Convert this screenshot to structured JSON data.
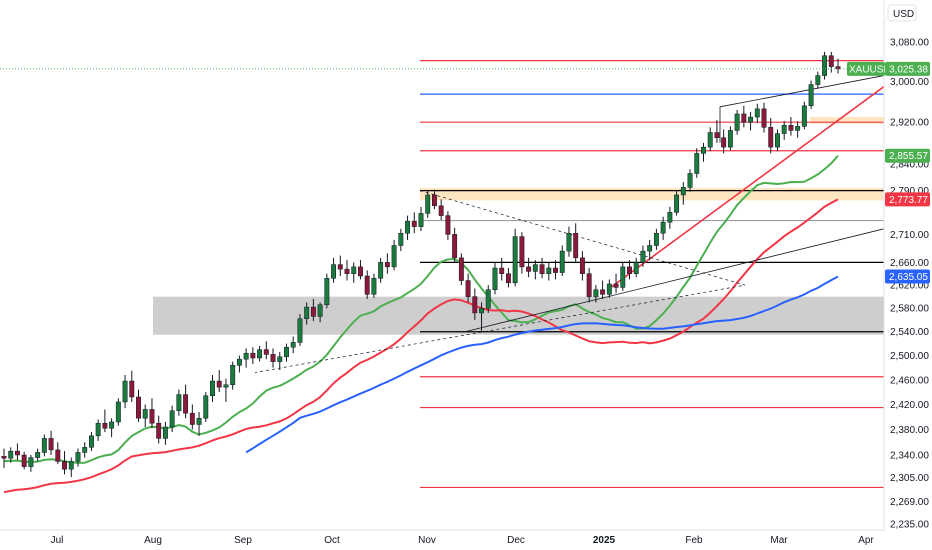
{
  "chart_data": {
    "type": "candlestick",
    "symbol": "XAUUSD",
    "currency": "USD",
    "last_price": 3025.38,
    "ylim": [
      2225,
      3095
    ],
    "y_scale": "log",
    "x_labels": [
      {
        "label": "Jul",
        "bold": false
      },
      {
        "label": "Aug",
        "bold": false
      },
      {
        "label": "Sep",
        "bold": false
      },
      {
        "label": "Oct",
        "bold": false
      },
      {
        "label": "Nov",
        "bold": false
      },
      {
        "label": "Dec",
        "bold": false
      },
      {
        "label": "2025",
        "bold": true
      },
      {
        "label": "Feb",
        "bold": false
      },
      {
        "label": "Mar",
        "bold": false
      },
      {
        "label": "Apr",
        "bold": false
      }
    ],
    "y_ticks": [
      3080,
      3000,
      2920,
      2840,
      2790,
      2710,
      2660,
      2620,
      2580,
      2540,
      2500,
      2460,
      2420,
      2380,
      2340,
      2305,
      2269,
      2235
    ],
    "price_badges": [
      {
        "label": "XAUUSD",
        "value": "3,025.38",
        "color": "#4caf50"
      },
      {
        "value": "2,855.57",
        "color": "#4caf50"
      },
      {
        "value": "2,773.77",
        "color": "#f23645"
      },
      {
        "value": "2,635.05",
        "color": "#2962ff"
      }
    ],
    "moving_averages": [
      {
        "color": "#4caf50",
        "last": 2855.57
      },
      {
        "color": "#f23645",
        "last": 2773.77
      },
      {
        "color": "#2962ff",
        "last": 2635.05
      }
    ],
    "horizontal_levels": [
      {
        "price": 3042,
        "color": "#f23645"
      },
      {
        "price": 2975,
        "color": "#2962ff"
      },
      {
        "price": 2920,
        "color": "#f23645"
      },
      {
        "price": 2865,
        "color": "#f23645"
      },
      {
        "price": 2790,
        "color": "#000000"
      },
      {
        "price": 2735,
        "color": "#9e9e9e"
      },
      {
        "price": 2660,
        "color": "#000000"
      },
      {
        "price": 2540,
        "color": "#000000"
      },
      {
        "price": 2465,
        "color": "#f23645"
      },
      {
        "price": 2415,
        "color": "#f23645"
      },
      {
        "price": 2290,
        "color": "#f23645"
      }
    ],
    "zones": [
      {
        "from": 2535,
        "to": 2600,
        "color": "#bdbdbd"
      },
      {
        "from": 2772,
        "to": 2795,
        "color": "#ffe0b2"
      },
      {
        "from": 2917,
        "to": 2930,
        "color": "#ffe0b2"
      }
    ],
    "candles": [
      [
        2338,
        2350,
        2320,
        2335
      ],
      [
        2335,
        2352,
        2328,
        2346
      ],
      [
        2346,
        2358,
        2332,
        2340
      ],
      [
        2340,
        2345,
        2318,
        2322
      ],
      [
        2322,
        2340,
        2314,
        2336
      ],
      [
        2336,
        2350,
        2330,
        2344
      ],
      [
        2344,
        2372,
        2338,
        2366
      ],
      [
        2366,
        2378,
        2340,
        2348
      ],
      [
        2348,
        2360,
        2326,
        2330
      ],
      [
        2330,
        2346,
        2310,
        2318
      ],
      [
        2318,
        2336,
        2306,
        2330
      ],
      [
        2330,
        2350,
        2322,
        2344
      ],
      [
        2344,
        2360,
        2336,
        2352
      ],
      [
        2352,
        2376,
        2346,
        2370
      ],
      [
        2370,
        2396,
        2362,
        2390
      ],
      [
        2390,
        2412,
        2376,
        2382
      ],
      [
        2382,
        2398,
        2368,
        2392
      ],
      [
        2392,
        2430,
        2386,
        2424
      ],
      [
        2424,
        2468,
        2414,
        2458
      ],
      [
        2458,
        2475,
        2424,
        2432
      ],
      [
        2432,
        2444,
        2392,
        2398
      ],
      [
        2398,
        2420,
        2384,
        2412
      ],
      [
        2412,
        2430,
        2382,
        2390
      ],
      [
        2390,
        2402,
        2358,
        2366
      ],
      [
        2366,
        2392,
        2356,
        2384
      ],
      [
        2384,
        2418,
        2376,
        2410
      ],
      [
        2410,
        2444,
        2402,
        2436
      ],
      [
        2436,
        2452,
        2398,
        2406
      ],
      [
        2406,
        2420,
        2380,
        2388
      ],
      [
        2388,
        2408,
        2370,
        2398
      ],
      [
        2398,
        2440,
        2392,
        2434
      ],
      [
        2434,
        2468,
        2424,
        2458
      ],
      [
        2458,
        2476,
        2440,
        2448
      ],
      [
        2448,
        2462,
        2424,
        2452
      ],
      [
        2452,
        2490,
        2444,
        2484
      ],
      [
        2484,
        2500,
        2472,
        2494
      ],
      [
        2494,
        2512,
        2480,
        2504
      ],
      [
        2504,
        2514,
        2486,
        2496
      ],
      [
        2496,
        2516,
        2490,
        2510
      ],
      [
        2510,
        2524,
        2494,
        2502
      ],
      [
        2502,
        2512,
        2480,
        2490
      ],
      [
        2490,
        2506,
        2476,
        2498
      ],
      [
        2498,
        2520,
        2490,
        2514
      ],
      [
        2514,
        2532,
        2504,
        2522
      ],
      [
        2522,
        2570,
        2516,
        2562
      ],
      [
        2562,
        2590,
        2552,
        2582
      ],
      [
        2582,
        2596,
        2558,
        2566
      ],
      [
        2566,
        2590,
        2556,
        2586
      ],
      [
        2586,
        2640,
        2580,
        2632
      ],
      [
        2632,
        2668,
        2624,
        2656
      ],
      [
        2656,
        2672,
        2636,
        2648
      ],
      [
        2648,
        2664,
        2628,
        2640
      ],
      [
        2640,
        2660,
        2624,
        2652
      ],
      [
        2652,
        2664,
        2630,
        2636
      ],
      [
        2636,
        2646,
        2596,
        2604
      ],
      [
        2604,
        2640,
        2598,
        2632
      ],
      [
        2632,
        2668,
        2624,
        2660
      ],
      [
        2660,
        2676,
        2640,
        2652
      ],
      [
        2652,
        2700,
        2646,
        2690
      ],
      [
        2690,
        2720,
        2680,
        2712
      ],
      [
        2712,
        2744,
        2700,
        2734
      ],
      [
        2734,
        2750,
        2712,
        2724
      ],
      [
        2724,
        2760,
        2716,
        2748
      ],
      [
        2748,
        2790,
        2740,
        2782
      ],
      [
        2782,
        2792,
        2756,
        2762
      ],
      [
        2762,
        2774,
        2736,
        2744
      ],
      [
        2744,
        2752,
        2700,
        2710
      ],
      [
        2710,
        2722,
        2660,
        2668
      ],
      [
        2668,
        2676,
        2620,
        2628
      ],
      [
        2628,
        2640,
        2590,
        2600
      ],
      [
        2600,
        2614,
        2560,
        2572
      ],
      [
        2572,
        2590,
        2540,
        2580
      ],
      [
        2580,
        2620,
        2572,
        2612
      ],
      [
        2612,
        2660,
        2604,
        2650
      ],
      [
        2650,
        2668,
        2628,
        2640
      ],
      [
        2640,
        2650,
        2616,
        2624
      ],
      [
        2624,
        2720,
        2618,
        2706
      ],
      [
        2706,
        2714,
        2640,
        2652
      ],
      [
        2652,
        2668,
        2634,
        2644
      ],
      [
        2644,
        2664,
        2630,
        2656
      ],
      [
        2656,
        2668,
        2632,
        2640
      ],
      [
        2640,
        2660,
        2628,
        2650
      ],
      [
        2650,
        2664,
        2630,
        2642
      ],
      [
        2642,
        2690,
        2636,
        2680
      ],
      [
        2680,
        2724,
        2670,
        2712
      ],
      [
        2712,
        2730,
        2660,
        2668
      ],
      [
        2668,
        2680,
        2628,
        2640
      ],
      [
        2640,
        2650,
        2590,
        2600
      ],
      [
        2600,
        2620,
        2590,
        2612
      ],
      [
        2612,
        2628,
        2596,
        2604
      ],
      [
        2604,
        2630,
        2598,
        2622
      ],
      [
        2622,
        2640,
        2606,
        2616
      ],
      [
        2616,
        2660,
        2610,
        2652
      ],
      [
        2652,
        2664,
        2630,
        2640
      ],
      [
        2640,
        2668,
        2634,
        2660
      ],
      [
        2660,
        2690,
        2652,
        2680
      ],
      [
        2680,
        2700,
        2664,
        2690
      ],
      [
        2690,
        2720,
        2682,
        2712
      ],
      [
        2712,
        2742,
        2700,
        2732
      ],
      [
        2732,
        2760,
        2720,
        2750
      ],
      [
        2750,
        2790,
        2744,
        2782
      ],
      [
        2782,
        2806,
        2764,
        2796
      ],
      [
        2796,
        2830,
        2788,
        2822
      ],
      [
        2822,
        2870,
        2814,
        2860
      ],
      [
        2860,
        2880,
        2844,
        2872
      ],
      [
        2872,
        2910,
        2864,
        2900
      ],
      [
        2900,
        2924,
        2880,
        2890
      ],
      [
        2890,
        2906,
        2860,
        2872
      ],
      [
        2872,
        2912,
        2866,
        2904
      ],
      [
        2904,
        2944,
        2896,
        2936
      ],
      [
        2936,
        2952,
        2910,
        2920
      ],
      [
        2920,
        2940,
        2904,
        2930
      ],
      [
        2930,
        2956,
        2918,
        2946
      ],
      [
        2946,
        2958,
        2900,
        2910
      ],
      [
        2910,
        2928,
        2860,
        2872
      ],
      [
        2872,
        2906,
        2864,
        2898
      ],
      [
        2898,
        2922,
        2886,
        2914
      ],
      [
        2914,
        2930,
        2894,
        2904
      ],
      [
        2904,
        2922,
        2890,
        2912
      ],
      [
        2912,
        2960,
        2906,
        2952
      ],
      [
        2952,
        3002,
        2946,
        2994
      ],
      [
        2994,
        3020,
        2986,
        3012
      ],
      [
        3012,
        3060,
        3004,
        3052
      ],
      [
        3052,
        3060,
        3018,
        3030
      ],
      [
        3030,
        3046,
        3016,
        3025.38
      ]
    ]
  }
}
